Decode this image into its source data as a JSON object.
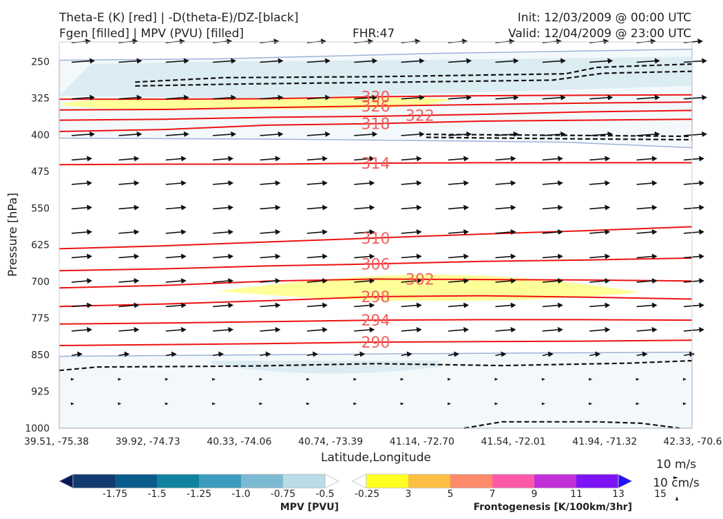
{
  "header": {
    "title_left_1": "Theta-E (K) [red] | -D(theta-E)/DZ-[black]",
    "title_left_2": "Fgen [filled] | MPV (PVU) [filled]",
    "fhr": "FHR:47",
    "init": "Init: 12/03/2009 @ 00:00 UTC",
    "valid": "Valid: 12/04/2009 @ 23:00 UTC"
  },
  "colors": {
    "theta_e": "#ee1111",
    "theta_e_label": "#f06060",
    "instability": "#111111",
    "mpv_light": "#f3f9fb",
    "mpv_mid": "#dcecf3",
    "mpv_outline": "#9fb1d8",
    "fgen_3": "#ffff99",
    "arrow": "#111111"
  },
  "chart_data": {
    "type": "contour",
    "xlabel": "Latitude,Longitude",
    "ylabel": "Pressure [hPa]",
    "x_ticks": [
      "39.51, -75.38",
      "39.92, -74.73",
      "40.33, -74.06",
      "40.74, -73.39",
      "41.14, -72.70",
      "41.54, -72.01",
      "41.94, -71.32",
      "42.33, -70.6"
    ],
    "y_ticks": [
      250,
      325,
      400,
      475,
      550,
      625,
      700,
      775,
      850,
      925,
      1000
    ],
    "ylim": [
      1000,
      210
    ],
    "y_scale": "linear, inverted",
    "theta_e_contours": [
      {
        "value": 330,
        "label": "330",
        "label_x": 0.5,
        "pressure": [
          327,
          327,
          326,
          322,
          320,
          319,
          318
        ]
      },
      {
        "value": 326,
        "label": "326",
        "label_x": 0.5,
        "pressure": [
          349,
          348,
          344,
          341,
          338,
          335,
          333
        ]
      },
      {
        "value": 322,
        "label": "322",
        "label_x": 0.57,
        "pressure": [
          370,
          368,
          364,
          362,
          358,
          353,
          350
        ]
      },
      {
        "value": 318,
        "label": "318",
        "label_x": 0.5,
        "pressure": [
          393,
          389,
          380,
          377,
          372,
          370,
          368
        ]
      },
      {
        "value": 314,
        "label": "314",
        "label_x": 0.5,
        "pressure": [
          461,
          460,
          460,
          458,
          457,
          457,
          457
        ]
      },
      {
        "value": 310,
        "label": "310",
        "label_x": 0.5,
        "pressure": [
          633,
          627,
          619,
          611,
          603,
          596,
          588
        ]
      },
      {
        "value": 306,
        "label": "306",
        "label_x": 0.5,
        "pressure": [
          678,
          674,
          668,
          664,
          659,
          656,
          652
        ]
      },
      {
        "value": 302,
        "label": "302",
        "label_x": 0.57,
        "pressure": [
          713,
          708,
          699,
          695,
          696,
          697,
          699
        ]
      },
      {
        "value": 298,
        "label": "298",
        "label_x": 0.5,
        "pressure": [
          751,
          746,
          739,
          731,
          729,
          732,
          736
        ]
      },
      {
        "value": 294,
        "label": "294",
        "label_x": 0.5,
        "pressure": [
          787,
          785,
          782,
          779,
          778,
          778,
          779
        ]
      },
      {
        "value": 290,
        "label": "290",
        "label_x": 0.5,
        "pressure": [
          831,
          829,
          827,
          824,
          823,
          822,
          820
        ]
      }
    ],
    "instability_contours": [
      {
        "x": [
          0.12,
          0.26,
          0.5,
          0.8,
          0.85,
          1.0
        ],
        "pressure": [
          292,
          283,
          281,
          275,
          262,
          255
        ]
      },
      {
        "x": [
          0.12,
          0.28,
          0.55,
          0.78,
          0.86,
          1.0
        ],
        "pressure": [
          300,
          296,
          292,
          288,
          274,
          270
        ]
      },
      {
        "x": [
          0.58,
          0.8,
          1.0
        ],
        "pressure": [
          399,
          401,
          403
        ]
      },
      {
        "x": [
          0.58,
          0.8,
          1.0
        ],
        "pressure": [
          405,
          408,
          410
        ]
      },
      {
        "x": [
          0.0,
          0.06,
          0.3,
          0.5,
          0.7,
          0.9,
          1.0
        ],
        "pressure": [
          882,
          875,
          873,
          868,
          872,
          867,
          862
        ]
      },
      {
        "x": [
          0.64,
          0.7,
          0.85,
          0.92,
          0.98
        ],
        "pressure": [
          1000,
          987,
          987,
          990,
          1000
        ]
      }
    ],
    "fgen_regions": [
      {
        "level": 3,
        "shape": "upper band",
        "x_range": [
          0.0,
          0.62
        ],
        "pressure_range": [
          322,
          352
        ]
      },
      {
        "level": 3,
        "shape": "lower lens",
        "x_range": [
          0.25,
          0.92
        ],
        "pressure_range": [
          686,
          742
        ]
      }
    ],
    "mpv_regions": [
      {
        "level": -0.25,
        "shape": "upper band",
        "pressure_range": [
          222,
          415
        ]
      },
      {
        "level": -0.25,
        "shape": "lower region",
        "pressure_range": [
          853,
          1000
        ]
      }
    ],
    "wind_barbs": {
      "columns": 14,
      "levels": [
        210,
        250,
        325,
        400,
        450,
        500,
        550,
        600,
        650,
        700,
        750,
        800,
        850,
        900,
        950
      ]
    },
    "colorbars": [
      {
        "title": "MPV [PVU]",
        "ticks": [
          "-1.75",
          "-1.5",
          "-1.25",
          "-1.0",
          "-0.75",
          "-0.5",
          "-0.25"
        ],
        "colors": [
          "#081a5c",
          "#113a6e",
          "#095b8c",
          "#11829d",
          "#3c9cbd",
          "#7cbad3",
          "#b9dce6",
          "#ffffff"
        ]
      },
      {
        "title": "Frontogenesis [K/100km/3hr]",
        "ticks": [
          "3",
          "5",
          "7",
          "9",
          "11",
          "13",
          "15"
        ],
        "colors": [
          "#ffffff",
          "#ffff22",
          "#fdbf44",
          "#fd8a6b",
          "#fc5aa6",
          "#c12fd8",
          "#7d14f5",
          "#2610f8"
        ]
      }
    ],
    "vector_key": {
      "line1": "10 m/s",
      "line2": "10 cm/s"
    }
  }
}
